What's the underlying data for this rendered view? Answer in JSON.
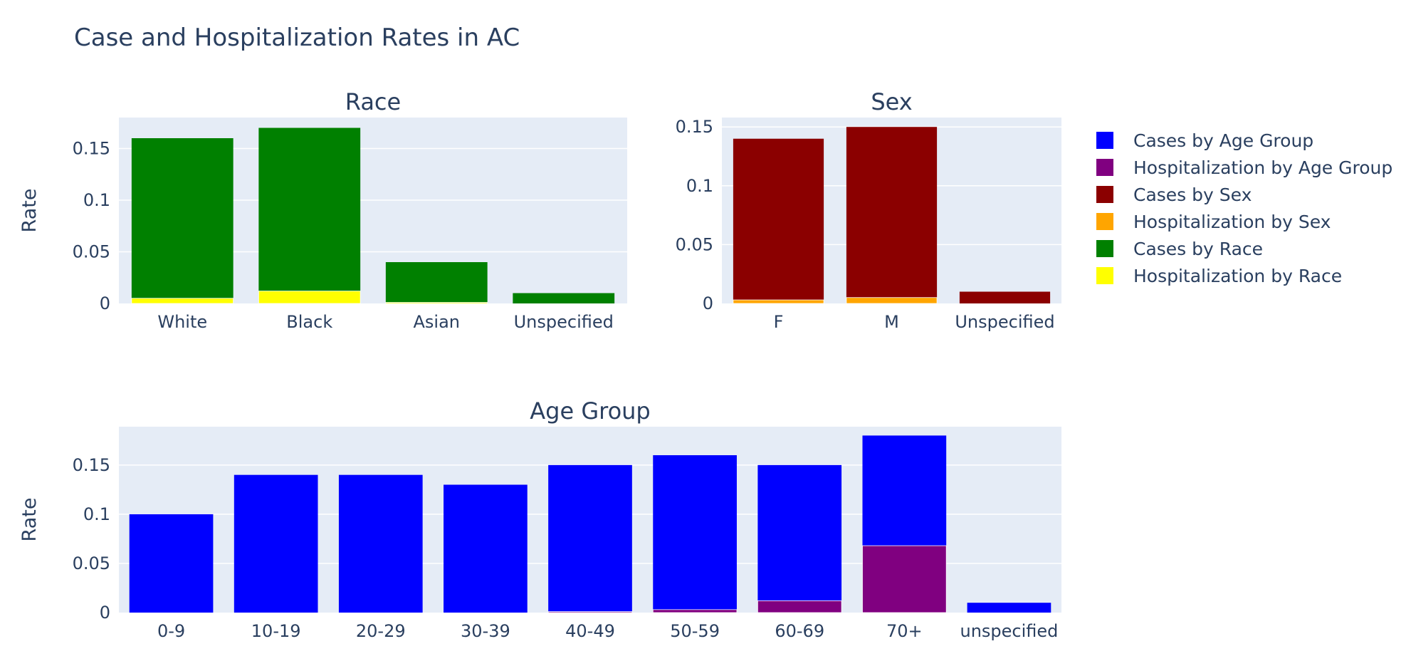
{
  "figure_title": "Case and Hospitalization Rates in AC",
  "legend": [
    {
      "label": "Cases by Age Group",
      "color": "#0000ff"
    },
    {
      "label": "Hospitalization by Age Group",
      "color": "#800080"
    },
    {
      "label": "Cases by Sex",
      "color": "#8b0000"
    },
    {
      "label": "Hospitalization by Sex",
      "color": "#ffa500"
    },
    {
      "label": "Cases by Race",
      "color": "#008000"
    },
    {
      "label": "Hospitalization by Race",
      "color": "#ffff00"
    }
  ],
  "chart_data": [
    {
      "type": "bar",
      "title": "Race",
      "xlabel": "",
      "ylabel": "Rate",
      "ylim": [
        0,
        0.18
      ],
      "yticks": [
        0,
        0.05,
        0.1,
        0.15
      ],
      "ytick_labels": [
        "0",
        "0.05",
        "0.1",
        "0.15"
      ],
      "categories": [
        "White",
        "Black",
        "Asian",
        "Unspecified"
      ],
      "barmode": "overlay",
      "grid": true,
      "series": [
        {
          "name": "Cases by Race",
          "color": "#008000",
          "values": [
            0.16,
            0.17,
            0.04,
            0.01
          ]
        },
        {
          "name": "Hospitalization by Race",
          "color": "#ffff00",
          "values": [
            0.005,
            0.012,
            0.001,
            0.0
          ]
        }
      ]
    },
    {
      "type": "bar",
      "title": "Sex",
      "xlabel": "",
      "ylabel": "",
      "ylim": [
        0,
        0.158
      ],
      "yticks": [
        0,
        0.05,
        0.1,
        0.15
      ],
      "ytick_labels": [
        "0",
        "0.05",
        "0.1",
        "0.15"
      ],
      "categories": [
        "F",
        "M",
        "Unspecified"
      ],
      "barmode": "overlay",
      "grid": true,
      "series": [
        {
          "name": "Cases by Sex",
          "color": "#8b0000",
          "values": [
            0.14,
            0.15,
            0.01
          ]
        },
        {
          "name": "Hospitalization by Sex",
          "color": "#ffa500",
          "values": [
            0.003,
            0.005,
            0.0
          ]
        }
      ]
    },
    {
      "type": "bar",
      "title": "Age Group",
      "xlabel": "",
      "ylabel": "Rate",
      "ylim": [
        0,
        0.189
      ],
      "yticks": [
        0,
        0.05,
        0.1,
        0.15
      ],
      "ytick_labels": [
        "0",
        "0.05",
        "0.1",
        "0.15"
      ],
      "categories": [
        "0-9",
        "10-19",
        "20-29",
        "30-39",
        "40-49",
        "50-59",
        "60-69",
        "70+",
        "unspecified"
      ],
      "barmode": "overlay",
      "grid": true,
      "series": [
        {
          "name": "Cases by Age Group",
          "color": "#0000ff",
          "values": [
            0.1,
            0.14,
            0.14,
            0.13,
            0.15,
            0.16,
            0.15,
            0.18,
            0.01
          ]
        },
        {
          "name": "Hospitalization by Age Group",
          "color": "#800080",
          "values": [
            0.0,
            0.0,
            0.0,
            0.0,
            0.001,
            0.003,
            0.012,
            0.068,
            0.0
          ]
        }
      ]
    }
  ]
}
